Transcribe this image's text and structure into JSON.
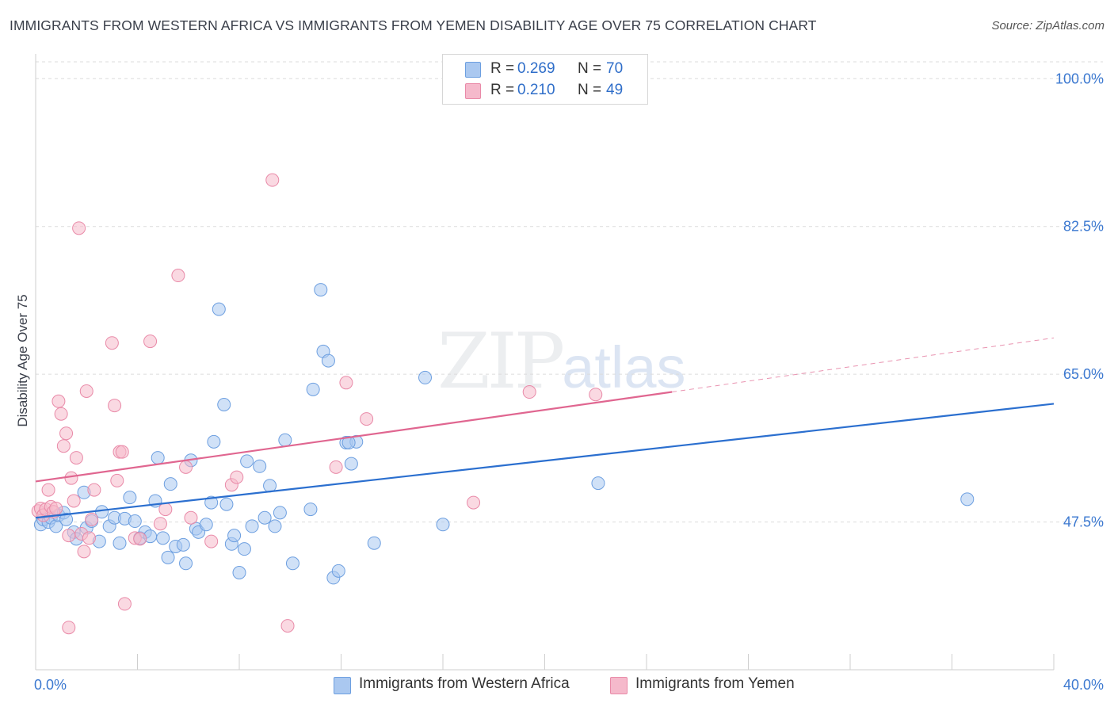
{
  "title": "IMMIGRANTS FROM WESTERN AFRICA VS IMMIGRANTS FROM YEMEN DISABILITY AGE OVER 75 CORRELATION CHART",
  "source": "Source: ZipAtlas.com",
  "watermark": {
    "zip": "ZIP",
    "atlas": "atlas"
  },
  "legend": [
    {
      "r_label": "R = ",
      "r_value": "0.269",
      "n_label": "N = ",
      "n_value": "70"
    },
    {
      "r_label": "R = ",
      "r_value": "0.210",
      "n_label": "N = ",
      "n_value": "49"
    }
  ],
  "colors": {
    "blue_fill": "#aac8f0",
    "blue_stroke": "#6d9fe0",
    "blue_line": "#2b6fcf",
    "pink_fill": "#f5b9cb",
    "pink_stroke": "#e98aa8",
    "pink_line": "#e06690",
    "tick_text": "#3b78d0"
  },
  "chart_data": {
    "type": "scatter",
    "title": "IMMIGRANTS FROM WESTERN AFRICA VS IMMIGRANTS FROM YEMEN DISABILITY AGE OVER 75 CORRELATION CHART",
    "xlabel": "",
    "ylabel": "Disability Age Over 75",
    "xlim": [
      0,
      40
    ],
    "ylim": [
      30,
      102
    ],
    "x_tick_labels": [
      "0.0%",
      "40.0%"
    ],
    "y_ticks": [
      47.5,
      65.0,
      82.5,
      100.0
    ],
    "y_tick_labels": [
      "47.5%",
      "65.0%",
      "82.5%",
      "100.0%"
    ],
    "series": [
      {
        "name": "Immigrants from Western Africa",
        "color": "blue",
        "R": 0.269,
        "N": 70,
        "trend": {
          "x0": 0,
          "y0": 48.0,
          "x1": 40,
          "y1": 61.5
        },
        "points": [
          [
            0.2,
            47.2
          ],
          [
            0.3,
            47.8
          ],
          [
            0.5,
            47.5
          ],
          [
            0.6,
            48.0
          ],
          [
            0.8,
            47.0
          ],
          [
            0.9,
            48.3
          ],
          [
            1.1,
            48.6
          ],
          [
            1.2,
            47.8
          ],
          [
            1.5,
            46.3
          ],
          [
            1.6,
            45.5
          ],
          [
            1.9,
            51.0
          ],
          [
            2.0,
            46.8
          ],
          [
            2.2,
            47.6
          ],
          [
            2.5,
            45.2
          ],
          [
            2.6,
            48.7
          ],
          [
            2.9,
            47.0
          ],
          [
            3.1,
            48.0
          ],
          [
            3.3,
            45.0
          ],
          [
            3.5,
            47.9
          ],
          [
            3.7,
            50.4
          ],
          [
            3.9,
            47.6
          ],
          [
            4.1,
            45.6
          ],
          [
            4.3,
            46.3
          ],
          [
            4.5,
            45.8
          ],
          [
            4.7,
            50.0
          ],
          [
            4.8,
            55.1
          ],
          [
            5.0,
            45.6
          ],
          [
            5.2,
            43.3
          ],
          [
            5.3,
            52.0
          ],
          [
            5.5,
            44.6
          ],
          [
            5.8,
            44.8
          ],
          [
            5.9,
            42.6
          ],
          [
            6.1,
            54.8
          ],
          [
            6.3,
            46.7
          ],
          [
            6.4,
            46.3
          ],
          [
            6.7,
            47.2
          ],
          [
            6.9,
            49.8
          ],
          [
            7.0,
            57.0
          ],
          [
            7.2,
            72.7
          ],
          [
            7.4,
            61.4
          ],
          [
            7.5,
            49.6
          ],
          [
            7.7,
            44.9
          ],
          [
            7.8,
            45.9
          ],
          [
            8.0,
            41.5
          ],
          [
            8.2,
            44.3
          ],
          [
            8.3,
            54.7
          ],
          [
            8.5,
            47.0
          ],
          [
            8.8,
            54.1
          ],
          [
            9.0,
            48.0
          ],
          [
            9.2,
            51.8
          ],
          [
            9.4,
            47.0
          ],
          [
            9.6,
            48.6
          ],
          [
            9.8,
            57.2
          ],
          [
            10.1,
            42.6
          ],
          [
            10.8,
            49.0
          ],
          [
            10.9,
            63.2
          ],
          [
            11.2,
            75.0
          ],
          [
            11.3,
            67.7
          ],
          [
            11.5,
            66.6
          ],
          [
            11.7,
            40.9
          ],
          [
            11.9,
            41.7
          ],
          [
            12.2,
            56.9
          ],
          [
            12.4,
            54.4
          ],
          [
            12.6,
            57.0
          ],
          [
            13.3,
            45.0
          ],
          [
            15.3,
            64.6
          ],
          [
            16.0,
            47.2
          ],
          [
            22.1,
            52.1
          ],
          [
            36.6,
            50.2
          ],
          [
            12.3,
            56.9
          ]
        ]
      },
      {
        "name": "Immigrants from Yemen",
        "color": "pink",
        "R": 0.21,
        "N": 49,
        "trend": {
          "x0": 0,
          "y0": 52.3,
          "x1": 25,
          "y1": 62.9
        },
        "trend_ext": {
          "x0": 25,
          "y0": 62.9,
          "x1": 40,
          "y1": 69.3
        },
        "points": [
          [
            0.1,
            48.8
          ],
          [
            0.2,
            49.1
          ],
          [
            0.3,
            48.3
          ],
          [
            0.4,
            49.0
          ],
          [
            0.5,
            51.3
          ],
          [
            0.6,
            49.3
          ],
          [
            0.7,
            48.7
          ],
          [
            0.8,
            49.1
          ],
          [
            0.9,
            61.8
          ],
          [
            1.0,
            60.3
          ],
          [
            1.1,
            56.5
          ],
          [
            1.2,
            58.0
          ],
          [
            1.3,
            45.9
          ],
          [
            1.4,
            52.7
          ],
          [
            1.5,
            50.0
          ],
          [
            1.6,
            55.1
          ],
          [
            1.7,
            82.3
          ],
          [
            1.8,
            46.1
          ],
          [
            1.9,
            44.0
          ],
          [
            2.0,
            63.0
          ],
          [
            2.1,
            45.6
          ],
          [
            2.2,
            47.8
          ],
          [
            2.3,
            51.3
          ],
          [
            3.0,
            68.7
          ],
          [
            3.1,
            61.3
          ],
          [
            3.2,
            52.4
          ],
          [
            3.3,
            55.8
          ],
          [
            3.4,
            55.8
          ],
          [
            3.5,
            37.8
          ],
          [
            3.9,
            45.6
          ],
          [
            4.1,
            45.5
          ],
          [
            4.5,
            68.9
          ],
          [
            4.9,
            47.3
          ],
          [
            5.1,
            49.0
          ],
          [
            5.6,
            76.7
          ],
          [
            5.9,
            54.0
          ],
          [
            6.1,
            48.0
          ],
          [
            6.9,
            45.2
          ],
          [
            7.7,
            51.9
          ],
          [
            7.9,
            52.8
          ],
          [
            9.3,
            88.0
          ],
          [
            9.9,
            35.2
          ],
          [
            11.8,
            54.0
          ],
          [
            12.2,
            64.0
          ],
          [
            13.0,
            59.7
          ],
          [
            17.2,
            49.8
          ],
          [
            19.4,
            62.9
          ],
          [
            22.0,
            62.6
          ],
          [
            1.3,
            35.0
          ]
        ]
      }
    ]
  },
  "bottom_legend": [
    {
      "label": "Immigrants from Western Africa"
    },
    {
      "label": "Immigrants from Yemen"
    }
  ]
}
